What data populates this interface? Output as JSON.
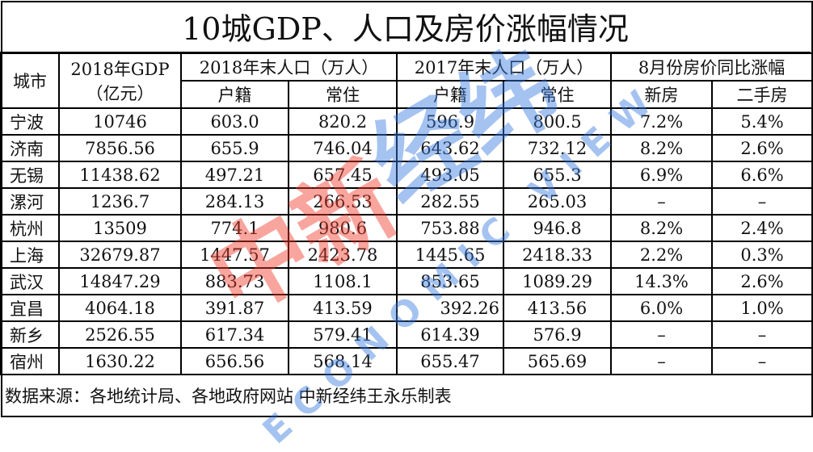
{
  "title": "10城GDP、人口及房价涨幅情况",
  "headers": {
    "city": "城市",
    "gdp_line1": "2018年GDP",
    "gdp_line2": "（亿元）",
    "pop2018": "2018年末人口（万人）",
    "pop2017": "2017年末人口（万人）",
    "price": "8月份房价同比涨幅",
    "huji": "户籍",
    "changzhu": "常住",
    "new_house": "新房",
    "second_house": "二手房"
  },
  "rows": [
    {
      "city": "宁波",
      "gdp": "10746",
      "h18": "603.0",
      "c18": "820.2",
      "h17": "596.9",
      "c17": "800.5",
      "new": "7.2%",
      "second": "5.4%"
    },
    {
      "city": "济南",
      "gdp": "7856.56",
      "h18": "655.9",
      "c18": "746.04",
      "h17": "643.62",
      "c17": "732.12",
      "new": "8.2%",
      "second": "2.6%"
    },
    {
      "city": "无锡",
      "gdp": "11438.62",
      "h18": "497.21",
      "c18": "657.45",
      "h17": "493.05",
      "c17": "655.3",
      "new": "6.9%",
      "second": "6.6%"
    },
    {
      "city": "漯河",
      "gdp": "1236.7",
      "h18": "284.13",
      "c18": "266.53",
      "h17": "282.55",
      "c17": "265.03",
      "new": "–",
      "second": "–"
    },
    {
      "city": "杭州",
      "gdp": "13509",
      "h18": "774.1",
      "c18": "980.6",
      "h17": "753.88",
      "c17": "946.8",
      "new": "8.2%",
      "second": "2.4%"
    },
    {
      "city": "上海",
      "gdp": "32679.87",
      "h18": "1447.57",
      "c18": "2423.78",
      "h17": "1445.65",
      "c17": "2418.33",
      "new": "2.2%",
      "second": "0.3%"
    },
    {
      "city": "武汉",
      "gdp": "14847.29",
      "h18": "883.73",
      "c18": "1108.1",
      "h17": "853.65",
      "c17": "1089.29",
      "new": "14.3%",
      "second": "2.6%"
    },
    {
      "city": "宜昌",
      "gdp": "4064.18",
      "h18": "391.87",
      "c18": "413.59",
      "h17": "392.26",
      "c17": "413.56",
      "new": "6.0%",
      "second": "1.0%"
    },
    {
      "city": "新乡",
      "gdp": "2526.55",
      "h18": "617.34",
      "c18": "579.41",
      "h17": "614.39",
      "c17": "576.9",
      "new": "–",
      "second": "–"
    },
    {
      "city": "宿州",
      "gdp": "1630.22",
      "h18": "656.56",
      "c18": "568.14",
      "h17": "655.47",
      "c17": "565.69",
      "new": "–",
      "second": "–"
    }
  ],
  "footer": "数据来源：各地统计局、各地政府网站  中新经纬王永乐制表",
  "watermark": {
    "logo_text": "中新经纬",
    "sub_text": "ECONOMIC VIEW",
    "colors": {
      "red": "#f03a2a",
      "blue": "#3a7be0"
    }
  }
}
